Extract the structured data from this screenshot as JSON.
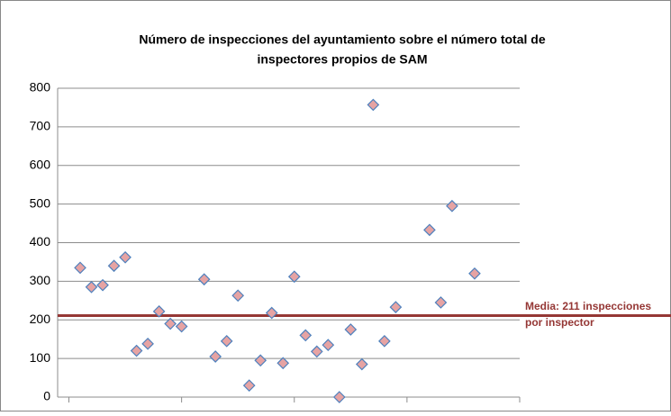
{
  "chart_data": {
    "type": "scatter",
    "title": [
      "Número de inspecciones  del ayuntamiento sobre el número total de",
      "inspectores propios de SAM"
    ],
    "series": [
      {
        "color": "#e6a3a3",
        "x": [
          1,
          2,
          3,
          4,
          5,
          6,
          7,
          8,
          9,
          10,
          12,
          13,
          14,
          15,
          16,
          17,
          18,
          19,
          20,
          21,
          22,
          23,
          24,
          25,
          26,
          27,
          28,
          29,
          32,
          33,
          34,
          36
        ],
        "values": [
          335,
          285,
          290,
          340,
          362,
          120,
          138,
          222,
          190,
          183,
          305,
          105,
          145,
          263,
          30,
          95,
          218,
          88,
          312,
          160,
          118,
          135,
          0,
          175,
          85,
          757,
          145,
          233,
          433,
          245,
          495,
          320
        ]
      }
    ],
    "xlim": [
      -1,
      40
    ],
    "xticks": [
      0,
      10,
      20,
      30,
      40
    ],
    "ylim": [
      0,
      800
    ],
    "yticks": [
      0,
      100,
      200,
      300,
      400,
      500,
      600,
      700,
      800
    ],
    "grid": true,
    "reference_line": {
      "value": 211,
      "color": "#953735",
      "label": [
        "Media: 211 inspecciones",
        "por inspector"
      ]
    }
  }
}
